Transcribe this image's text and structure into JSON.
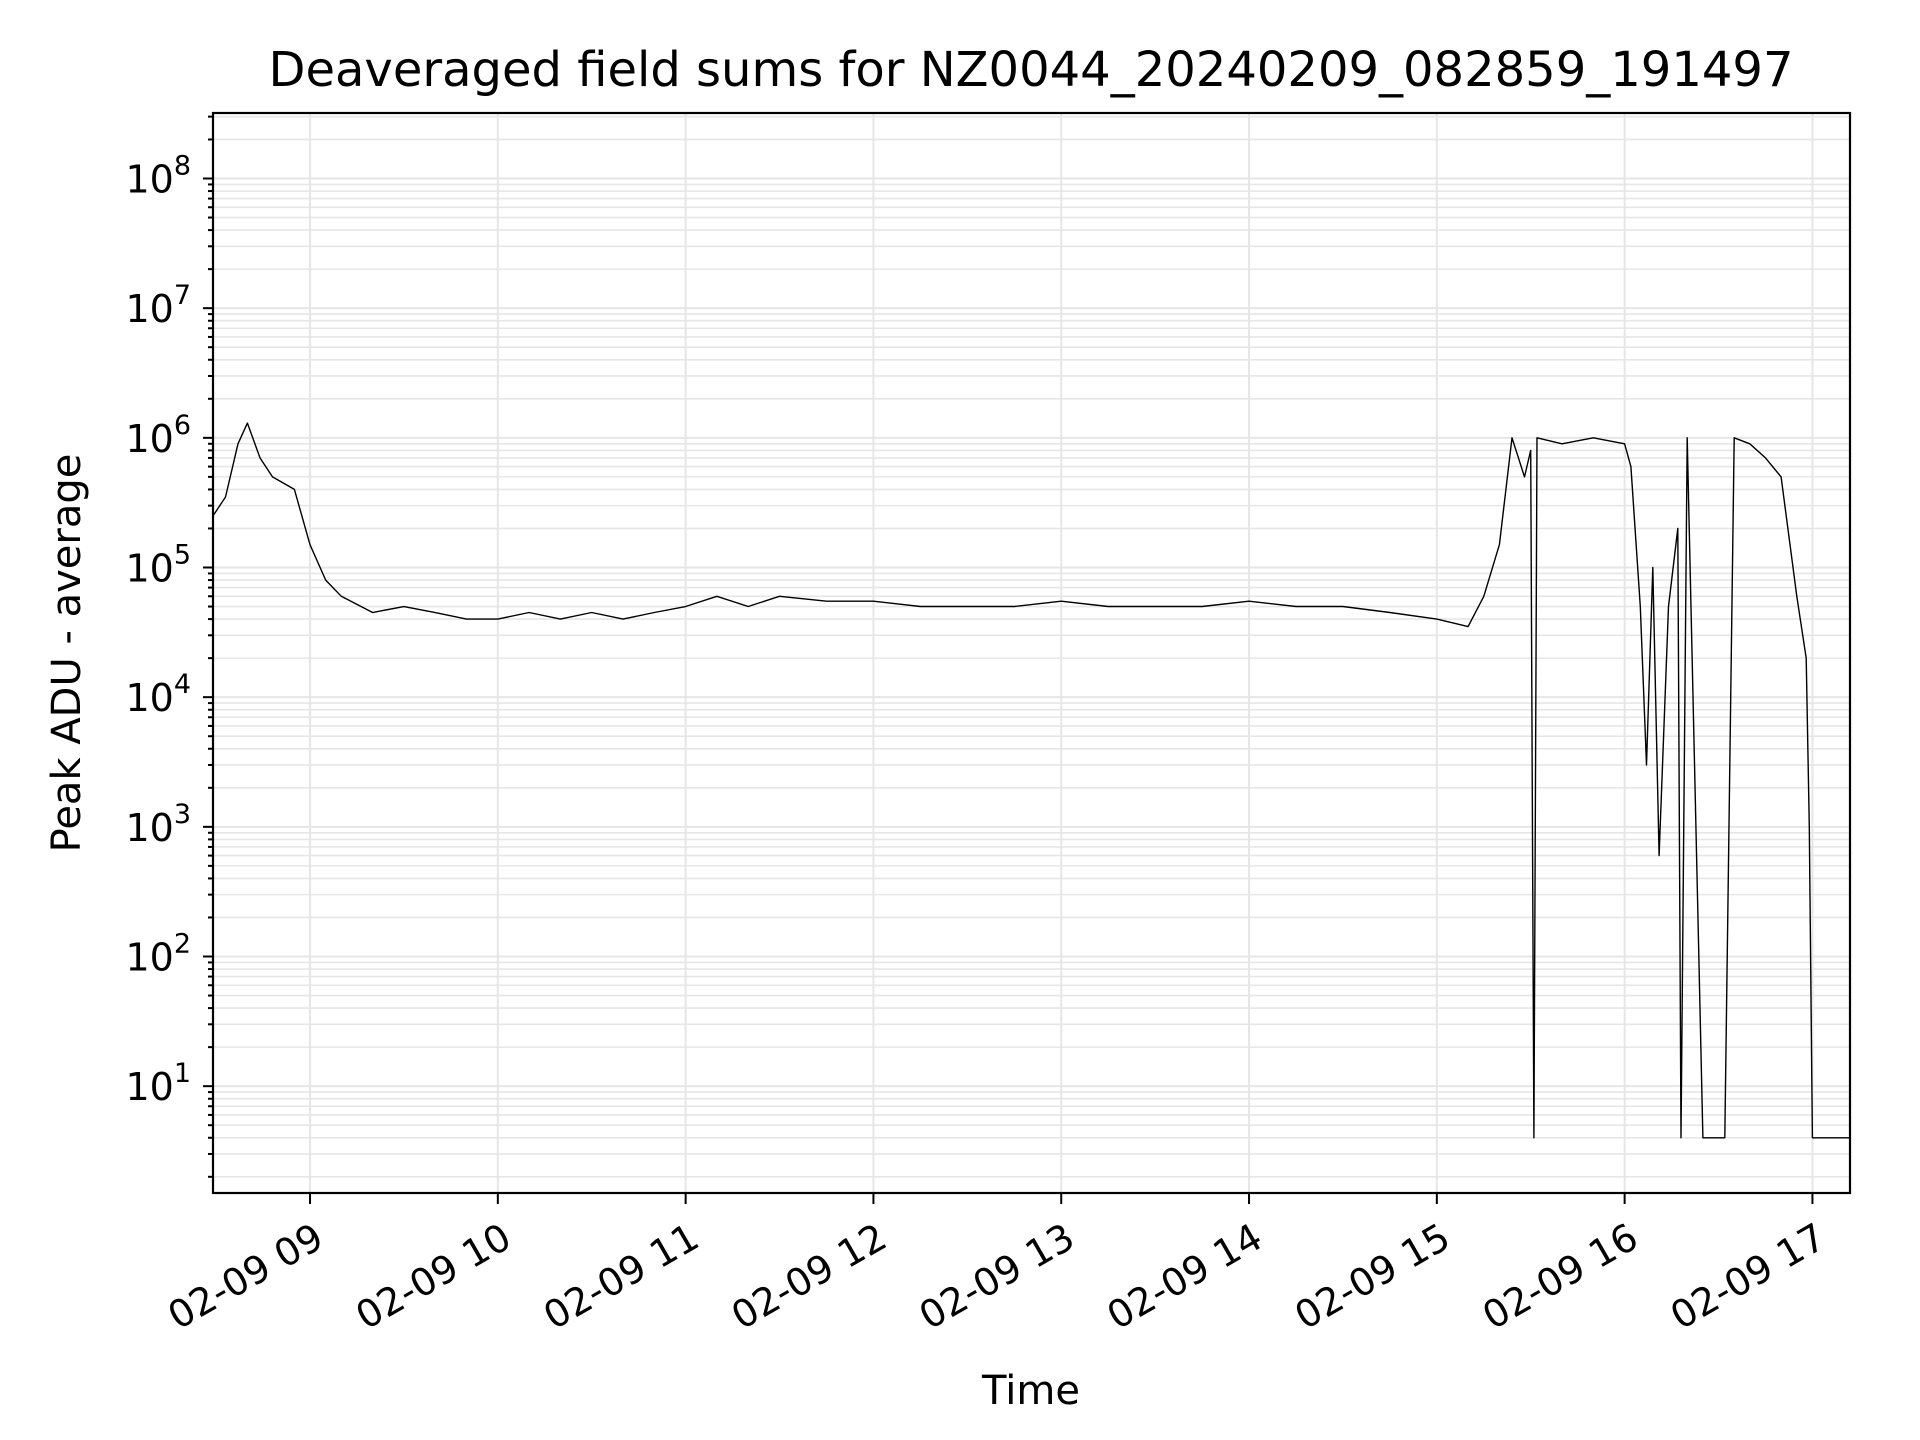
{
  "chart_data": {
    "type": "line",
    "title": "Deaveraged field sums for NZ0044_20240209_082859_191497",
    "xlabel": "Time",
    "ylabel": "Peak ADU - average",
    "yscale": "log",
    "ylim": [
      1.5,
      320000000.0
    ],
    "grid": true,
    "x_ticks": [
      "02-09 09",
      "02-09 10",
      "02-09 11",
      "02-09 12",
      "02-09 13",
      "02-09 14",
      "02-09 15",
      "02-09 16",
      "02-09 17"
    ],
    "y_ticks": [
      {
        "base": "10",
        "exp": "1"
      },
      {
        "base": "10",
        "exp": "2"
      },
      {
        "base": "10",
        "exp": "3"
      },
      {
        "base": "10",
        "exp": "4"
      },
      {
        "base": "10",
        "exp": "5"
      },
      {
        "base": "10",
        "exp": "6"
      },
      {
        "base": "10",
        "exp": "7"
      },
      {
        "base": "10",
        "exp": "8"
      }
    ],
    "xlim": [
      "02-09 08:29",
      "02-09 17:12"
    ],
    "line_color": "#000000",
    "grid_color": "#e6e6e6",
    "series": [
      {
        "x": [
          "02-09 08:29",
          "02-09 08:33",
          "02-09 08:37",
          "02-09 08:40",
          "02-09 08:44",
          "02-09 08:48",
          "02-09 08:55",
          "02-09 09:00",
          "02-09 09:05",
          "02-09 09:10",
          "02-09 09:20",
          "02-09 09:30",
          "02-09 09:40",
          "02-09 09:50",
          "02-09 10:00",
          "02-09 10:10",
          "02-09 10:20",
          "02-09 10:30",
          "02-09 10:40",
          "02-09 10:50",
          "02-09 11:00",
          "02-09 11:10",
          "02-09 11:20",
          "02-09 11:30",
          "02-09 11:45",
          "02-09 12:00",
          "02-09 12:15",
          "02-09 12:30",
          "02-09 12:45",
          "02-09 13:00",
          "02-09 13:15",
          "02-09 13:30",
          "02-09 13:45",
          "02-09 14:00",
          "02-09 14:15",
          "02-09 14:30",
          "02-09 14:45",
          "02-09 15:00",
          "02-09 15:10",
          "02-09 15:15",
          "02-09 15:20",
          "02-09 15:24",
          "02-09 15:28",
          "02-09 15:30",
          "02-09 15:31",
          "02-09 15:32",
          "02-09 15:40",
          "02-09 15:50",
          "02-09 16:00",
          "02-09 16:02",
          "02-09 16:05",
          "02-09 16:07",
          "02-09 16:09",
          "02-09 16:11",
          "02-09 16:14",
          "02-09 16:17",
          "02-09 16:18",
          "02-09 16:20",
          "02-09 16:25",
          "02-09 16:30",
          "02-09 16:32",
          "02-09 16:35",
          "02-09 16:40",
          "02-09 16:45",
          "02-09 16:50",
          "02-09 16:55",
          "02-09 16:58",
          "02-09 16:59",
          "02-09 17:00",
          "02-09 17:12"
        ],
        "y": [
          250000,
          350000,
          900000,
          1300000,
          700000,
          500000,
          400000,
          150000,
          80000,
          60000,
          45000,
          50000,
          45000,
          40000,
          40000,
          45000,
          40000,
          45000,
          40000,
          45000,
          50000,
          60000,
          50000,
          60000,
          55000,
          55000,
          50000,
          50000,
          50000,
          55000,
          50000,
          50000,
          50000,
          55000,
          50000,
          50000,
          45000,
          40000,
          35000,
          60000,
          150000,
          1000000,
          500000,
          800000,
          4,
          1000000,
          900000,
          1000000,
          900000,
          600000,
          50000,
          3000,
          100000,
          600,
          50000,
          200000,
          4,
          1000000,
          4,
          4,
          4,
          1000000,
          900000,
          700000,
          500000,
          60000,
          20000,
          1000,
          4,
          4
        ]
      }
    ],
    "annotations": []
  }
}
